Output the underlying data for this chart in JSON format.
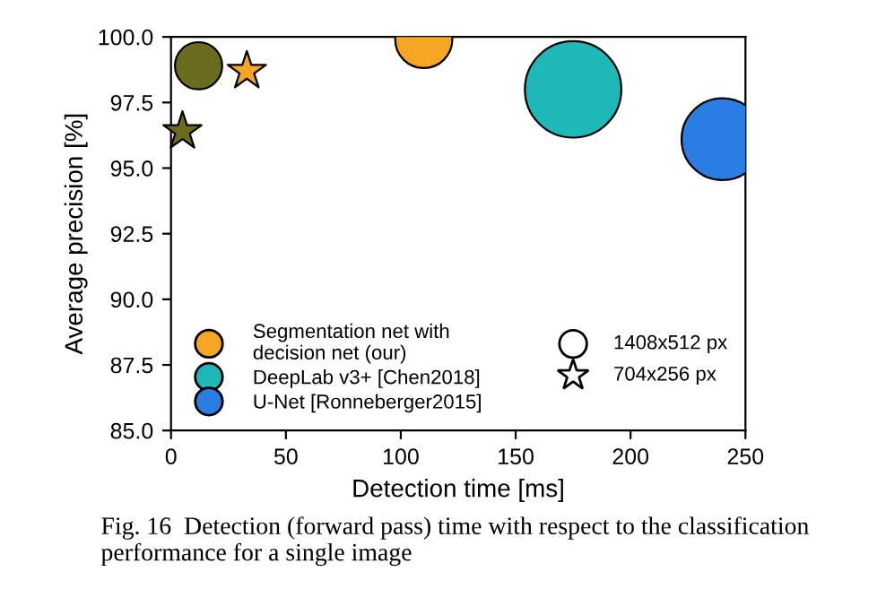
{
  "chart_data": {
    "type": "bubble",
    "xlabel": "Detection time [ms]",
    "ylabel": "Average precision [%]",
    "xlim": [
      0,
      250
    ],
    "xticks": [
      0,
      50,
      100,
      150,
      200,
      250
    ],
    "ylim": [
      85.0,
      100.0
    ],
    "yticks": [
      {
        "value": 85,
        "label": "85.0"
      },
      {
        "value": 87.5,
        "label": "87.5"
      },
      {
        "value": 90,
        "label": "90.0"
      },
      {
        "value": 92.5,
        "label": "92.5"
      },
      {
        "value": 95,
        "label": "95.0"
      },
      {
        "value": 97.5,
        "label": "97.5"
      },
      {
        "value": 100,
        "label": "100.0"
      }
    ],
    "grid": false,
    "legend": "bottom left",
    "marker": "circle",
    "series": [
      {
        "name": "Segmentation net with\ndecision net (our)",
        "color": "#f5a623",
        "x": [
          110
        ],
        "values": [
          99.9
        ],
        "sizes": [
          0.35
        ]
      },
      {
        "color": "#6b6b1e",
        "x": [
          12
        ],
        "values": [
          98.9
        ],
        "sizes": [
          0.24
        ]
      },
      {
        "name": "DeepLab v3+ [Chen2018]",
        "color": "#1fb8b8",
        "x": [
          175
        ],
        "values": [
          98.0
        ],
        "sizes": [
          1
        ]
      },
      {
        "name": "U-Net [Ronneberger2015]",
        "color": "#2a7de1",
        "x": [
          240
        ],
        "values": [
          96.1
        ],
        "sizes": [
          0.72
        ]
      },
      {
        "type": "scatter",
        "marker": "star",
        "color": "#f5a623",
        "x": [
          33
        ],
        "values": [
          98.7
        ]
      },
      {
        "type": "scatter",
        "marker": "star",
        "color": "#6b6b1e",
        "x": [
          5
        ],
        "values": [
          96.4
        ]
      }
    ],
    "annotations": [
      "1408x512 px",
      "704x256 px",
      "Fig. 16  Detection (forward pass) time with respect to the classification\nperformance for a single image"
    ]
  }
}
